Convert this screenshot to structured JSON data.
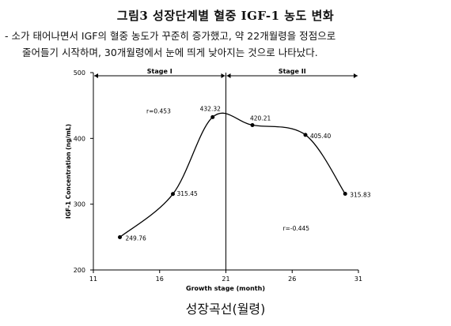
{
  "header": {
    "title": "그림3 성장단계별 혈중 IGF-1 농도 변화",
    "desc_line1": "- 소가 태어나면서 IGF의 혈중 농도가 꾸준히 증가했고, 약 22개월령을 정점으로",
    "desc_line2": "줄어들기 시작하며, 30개월령에서 눈에 띄게 낮아지는 것으로 나타났다."
  },
  "caption": "성장곡선(월령)",
  "chart_data": {
    "type": "line",
    "xlabel": "Growth stage (month)",
    "ylabel": "IGF-1 Concentration (ng/mL)",
    "xlim": [
      11,
      31
    ],
    "ylim": [
      200,
      500
    ],
    "xticks": [
      "11",
      "16",
      "21",
      "26",
      "31"
    ],
    "yticks": [
      "200",
      "300",
      "400",
      "500"
    ],
    "grid": false,
    "stages": [
      {
        "name": "Stage I",
        "from": 11,
        "to": 21
      },
      {
        "name": "Stage II",
        "from": 21,
        "to": 31
      }
    ],
    "divider_x": 21,
    "series": [
      {
        "x": [
          13,
          17,
          20,
          23,
          27,
          30
        ],
        "values": [
          249.76,
          315.45,
          432.32,
          420.21,
          405.4,
          315.83
        ],
        "labels": [
          "249.76",
          "315.45",
          "432.32",
          "420.21",
          "405.40",
          "315.83"
        ]
      }
    ],
    "annotations": [
      {
        "text": "r=0.453",
        "x": 15,
        "y": 438
      },
      {
        "text": "r=-0.445",
        "x": 25.3,
        "y": 260
      }
    ],
    "color": "#000000"
  }
}
